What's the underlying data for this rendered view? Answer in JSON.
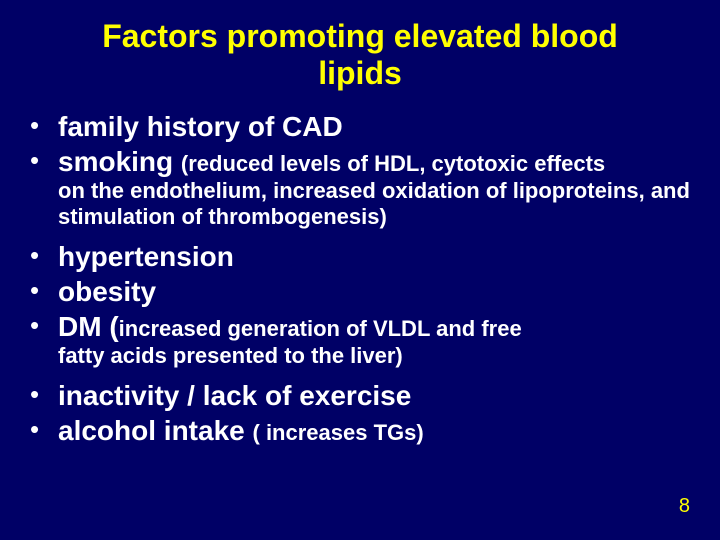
{
  "title": "Factors promoting elevated blood lipids",
  "bullets": {
    "b1": "family history of CAD",
    "b2_lead": "smoking ",
    "b2_sub1": "(reduced levels of HDL, cytotoxic effects",
    "b2_sub2": "on the endothelium, increased oxidation of lipoproteins, and stimulation of thrombogenesis)",
    "b3": "hypertension",
    "b4": "obesity",
    "b5_lead": "DM (",
    "b5_sub1": "increased generation of VLDL and free",
    "b5_sub2": "fatty acids presented to the liver)",
    "b6": "inactivity / lack of exercise",
    "b7_lead": "alcohol intake ",
    "b7_sub": "( increases TGs)"
  },
  "page_number": "8",
  "style": {
    "background_color": "#000066",
    "title_color": "#ffff00",
    "text_color": "#ffffff",
    "pagenum_color": "#ffff00",
    "title_fontsize": 32,
    "body_fontsize": 28,
    "sub_fontsize": 22,
    "pagenum_fontsize": 20,
    "font_family": "Arial"
  }
}
